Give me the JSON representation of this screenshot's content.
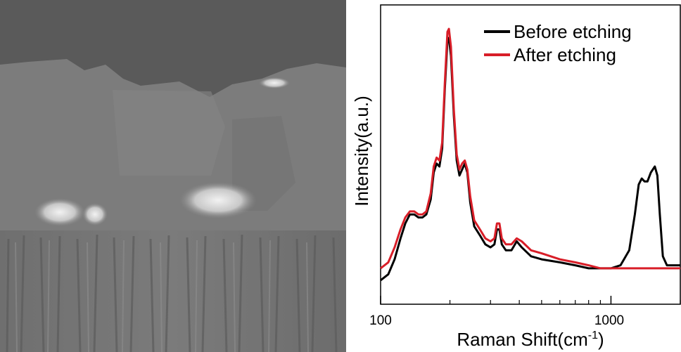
{
  "sem_image": {
    "description_icon": "sem-cross-section-micrograph"
  },
  "chart_data": {
    "type": "line",
    "xlabel": "Raman Shift(cm",
    "xlabel_sup": "-1",
    "xlabel_tail": ")",
    "ylabel": "Intensity(a.u.)",
    "x_scale": "log",
    "xlim": [
      100,
      2000
    ],
    "ylim": [
      0,
      1
    ],
    "x_tick_labels": [
      "100",
      "1000"
    ],
    "legend_position": "top-right",
    "series": [
      {
        "name": "Before etching",
        "color": "#000000",
        "points": [
          [
            100,
            0.08
          ],
          [
            108,
            0.1
          ],
          [
            115,
            0.15
          ],
          [
            122,
            0.22
          ],
          [
            128,
            0.27
          ],
          [
            134,
            0.3
          ],
          [
            140,
            0.3
          ],
          [
            146,
            0.29
          ],
          [
            152,
            0.29
          ],
          [
            158,
            0.3
          ],
          [
            165,
            0.35
          ],
          [
            170,
            0.44
          ],
          [
            175,
            0.47
          ],
          [
            180,
            0.46
          ],
          [
            185,
            0.52
          ],
          [
            190,
            0.72
          ],
          [
            195,
            0.88
          ],
          [
            198,
            0.89
          ],
          [
            202,
            0.83
          ],
          [
            208,
            0.63
          ],
          [
            214,
            0.48
          ],
          [
            220,
            0.43
          ],
          [
            226,
            0.45
          ],
          [
            232,
            0.47
          ],
          [
            238,
            0.44
          ],
          [
            245,
            0.34
          ],
          [
            255,
            0.26
          ],
          [
            270,
            0.23
          ],
          [
            285,
            0.2
          ],
          [
            300,
            0.19
          ],
          [
            312,
            0.2
          ],
          [
            320,
            0.25
          ],
          [
            328,
            0.25
          ],
          [
            336,
            0.2
          ],
          [
            350,
            0.18
          ],
          [
            370,
            0.18
          ],
          [
            390,
            0.21
          ],
          [
            410,
            0.19
          ],
          [
            450,
            0.16
          ],
          [
            500,
            0.15
          ],
          [
            600,
            0.14
          ],
          [
            700,
            0.13
          ],
          [
            800,
            0.12
          ],
          [
            900,
            0.12
          ],
          [
            1000,
            0.12
          ],
          [
            1100,
            0.13
          ],
          [
            1200,
            0.18
          ],
          [
            1270,
            0.3
          ],
          [
            1320,
            0.4
          ],
          [
            1360,
            0.42
          ],
          [
            1400,
            0.41
          ],
          [
            1440,
            0.41
          ],
          [
            1490,
            0.44
          ],
          [
            1550,
            0.46
          ],
          [
            1590,
            0.43
          ],
          [
            1630,
            0.3
          ],
          [
            1680,
            0.16
          ],
          [
            1750,
            0.13
          ],
          [
            1850,
            0.13
          ],
          [
            2000,
            0.13
          ]
        ]
      },
      {
        "name": "After etching",
        "color": "#d81e28",
        "points": [
          [
            100,
            0.12
          ],
          [
            108,
            0.14
          ],
          [
            115,
            0.19
          ],
          [
            122,
            0.25
          ],
          [
            128,
            0.29
          ],
          [
            134,
            0.31
          ],
          [
            140,
            0.31
          ],
          [
            146,
            0.3
          ],
          [
            152,
            0.3
          ],
          [
            158,
            0.31
          ],
          [
            165,
            0.37
          ],
          [
            170,
            0.46
          ],
          [
            175,
            0.49
          ],
          [
            180,
            0.48
          ],
          [
            185,
            0.54
          ],
          [
            190,
            0.74
          ],
          [
            195,
            0.91
          ],
          [
            198,
            0.92
          ],
          [
            202,
            0.86
          ],
          [
            208,
            0.65
          ],
          [
            214,
            0.5
          ],
          [
            220,
            0.45
          ],
          [
            226,
            0.47
          ],
          [
            232,
            0.48
          ],
          [
            238,
            0.45
          ],
          [
            245,
            0.36
          ],
          [
            255,
            0.28
          ],
          [
            270,
            0.25
          ],
          [
            285,
            0.22
          ],
          [
            300,
            0.21
          ],
          [
            312,
            0.22
          ],
          [
            320,
            0.27
          ],
          [
            328,
            0.27
          ],
          [
            336,
            0.22
          ],
          [
            350,
            0.2
          ],
          [
            370,
            0.2
          ],
          [
            390,
            0.22
          ],
          [
            410,
            0.21
          ],
          [
            450,
            0.18
          ],
          [
            500,
            0.17
          ],
          [
            600,
            0.15
          ],
          [
            700,
            0.14
          ],
          [
            800,
            0.13
          ],
          [
            900,
            0.12
          ],
          [
            1000,
            0.12
          ],
          [
            1200,
            0.12
          ],
          [
            1400,
            0.12
          ],
          [
            1600,
            0.12
          ],
          [
            1800,
            0.12
          ],
          [
            2000,
            0.12
          ]
        ]
      }
    ]
  }
}
